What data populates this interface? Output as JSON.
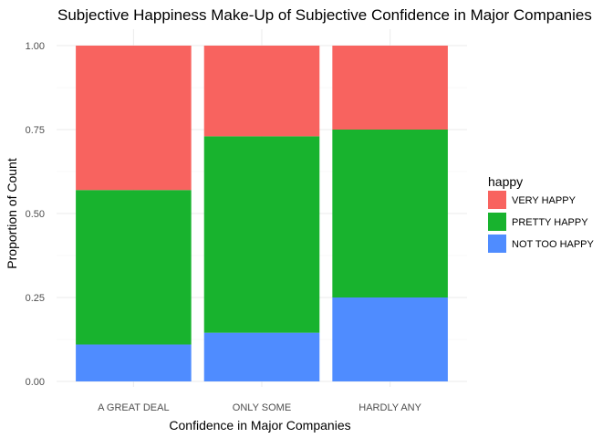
{
  "chart_data": {
    "type": "bar",
    "stacked": true,
    "title": "Subjective Happiness Make-Up of Subjective Confidence in Major Companies",
    "xlabel": "Confidence in Major Companies",
    "ylabel": "Proportion of Count",
    "ylim": [
      0,
      1
    ],
    "yticks": [
      "0.00",
      "0.25",
      "0.50",
      "0.75",
      "1.00"
    ],
    "categories": [
      "A GREAT DEAL",
      "ONLY SOME",
      "HARDLY ANY"
    ],
    "legend_title": "happy",
    "legend_position": "right",
    "grid": true,
    "series": [
      {
        "name": "NOT TOO HAPPY",
        "color": "#4F8CFF",
        "values": [
          0.11,
          0.145,
          0.25
        ]
      },
      {
        "name": "PRETTY HAPPY",
        "color": "#18B32E",
        "values": [
          0.46,
          0.585,
          0.5
        ]
      },
      {
        "name": "VERY HAPPY",
        "color": "#F8635F",
        "values": [
          0.43,
          0.27,
          0.25
        ]
      }
    ],
    "legend_order": [
      "VERY HAPPY",
      "PRETTY HAPPY",
      "NOT TOO HAPPY"
    ]
  }
}
